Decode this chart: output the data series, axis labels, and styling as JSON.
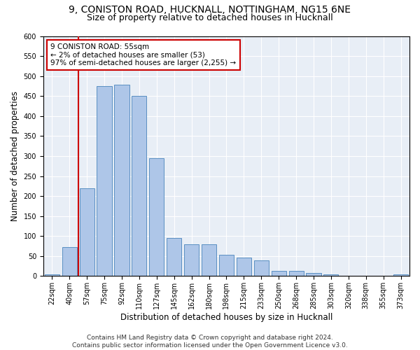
{
  "title1": "9, CONISTON ROAD, HUCKNALL, NOTTINGHAM, NG15 6NE",
  "title2": "Size of property relative to detached houses in Hucknall",
  "xlabel": "Distribution of detached houses by size in Hucknall",
  "ylabel": "Number of detached properties",
  "bar_labels": [
    "22sqm",
    "40sqm",
    "57sqm",
    "75sqm",
    "92sqm",
    "110sqm",
    "127sqm",
    "145sqm",
    "162sqm",
    "180sqm",
    "198sqm",
    "215sqm",
    "233sqm",
    "250sqm",
    "268sqm",
    "285sqm",
    "303sqm",
    "320sqm",
    "338sqm",
    "355sqm",
    "373sqm"
  ],
  "bar_values": [
    5,
    73,
    220,
    475,
    478,
    450,
    295,
    95,
    80,
    80,
    53,
    47,
    40,
    13,
    13,
    7,
    5,
    0,
    0,
    0,
    5
  ],
  "bar_color": "#aec6e8",
  "bar_edge_color": "#5a8fc2",
  "vline_color": "#cc0000",
  "annotation_text": "9 CONISTON ROAD: 55sqm\n← 2% of detached houses are smaller (53)\n97% of semi-detached houses are larger (2,255) →",
  "annotation_box_color": "#ffffff",
  "annotation_box_edge": "#cc0000",
  "ylim": [
    0,
    600
  ],
  "yticks": [
    0,
    50,
    100,
    150,
    200,
    250,
    300,
    350,
    400,
    450,
    500,
    550,
    600
  ],
  "bg_color": "#e8eef6",
  "footer": "Contains HM Land Registry data © Crown copyright and database right 2024.\nContains public sector information licensed under the Open Government Licence v3.0.",
  "title1_fontsize": 10,
  "title2_fontsize": 9,
  "xlabel_fontsize": 8.5,
  "ylabel_fontsize": 8.5,
  "tick_fontsize": 7,
  "footer_fontsize": 6.5
}
